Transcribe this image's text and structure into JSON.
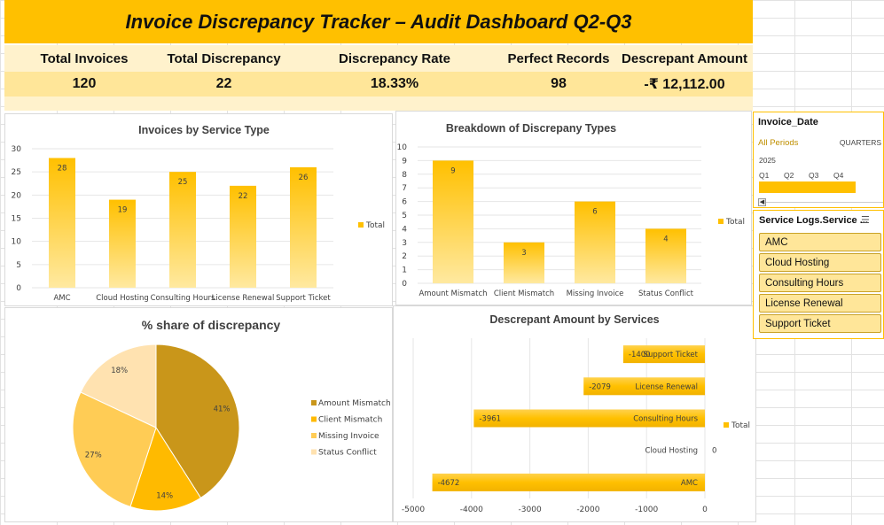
{
  "title": "Invoice Discrepancy Tracker – Audit Dashboard Q2-Q3",
  "kpis": {
    "labels": [
      "Total Invoices",
      "Total  Discrepancy",
      "Discrepancy Rate",
      "Perfect Records",
      "Descrepant Amount"
    ],
    "values": [
      "120",
      "22",
      "18.33%",
      "98",
      "-₹ 12,112.00"
    ]
  },
  "colors": {
    "accent": "#FFC000",
    "light": "#FFF2CC",
    "medium": "#FFE699"
  },
  "chart_data": [
    {
      "type": "bar",
      "title": "Invoices by Service Type",
      "categories": [
        "AMC",
        "Cloud Hosting",
        "Consulting Hours",
        "License Renewal",
        "Support Ticket"
      ],
      "series": [
        {
          "name": "Total",
          "values": [
            28,
            19,
            25,
            22,
            26
          ]
        }
      ],
      "ylim": [
        0,
        30
      ],
      "yticks": [
        0,
        5,
        10,
        15,
        20,
        25,
        30
      ],
      "legend": "right"
    },
    {
      "type": "bar",
      "title": "Breakdown of Discrepany Types",
      "categories": [
        "Amount Mismatch",
        "Client Mismatch",
        "Missing Invoice",
        "Status Conflict"
      ],
      "series": [
        {
          "name": "Total",
          "values": [
            9,
            3,
            6,
            4
          ]
        }
      ],
      "ylim": [
        0,
        10
      ],
      "yticks": [
        0,
        1,
        2,
        3,
        4,
        5,
        6,
        7,
        8,
        9,
        10
      ],
      "legend": "right"
    },
    {
      "type": "pie",
      "title": "% share  of  discrepancy",
      "categories": [
        "Amount Mismatch",
        "Client Mismatch",
        "Missing Invoice",
        "Status Conflict"
      ],
      "values": [
        41,
        14,
        27,
        18
      ],
      "labels": [
        "41%",
        "14%",
        "27%",
        "18%"
      ],
      "colors": [
        "#C9961A",
        "#FFBA00",
        "#FFCC55",
        "#FFE2B0"
      ],
      "legend": "right"
    },
    {
      "type": "bar",
      "orientation": "horizontal",
      "title": "Descrepant Amount by Services",
      "categories": [
        "AMC",
        "Cloud Hosting",
        "Consulting Hours",
        "License Renewal",
        "Support Ticket"
      ],
      "series": [
        {
          "name": "Total",
          "values": [
            -4672,
            0,
            -3961,
            -2079,
            -1400
          ]
        }
      ],
      "xlim": [
        -5000,
        0
      ],
      "xticks": [
        -5000,
        -4000,
        -3000,
        -2000,
        -1000,
        0
      ],
      "legend": "right"
    }
  ],
  "slicer_date": {
    "title": "Invoice_Date",
    "selection": "All Periods",
    "level": "QUARTERS",
    "year": "2025",
    "quarters": [
      "Q1",
      "Q2",
      "Q3",
      "Q4"
    ]
  },
  "slicer_service": {
    "title": "Service Logs.Service ...",
    "items": [
      "AMC",
      "Cloud Hosting",
      "Consulting Hours",
      "License Renewal",
      "Support Ticket"
    ]
  }
}
